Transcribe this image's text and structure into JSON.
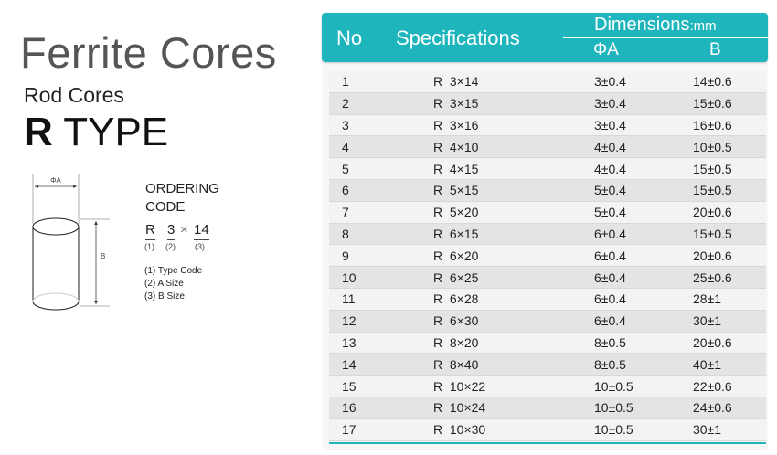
{
  "title": "Ferrite Cores",
  "subtitle": "Rod Cores",
  "type_prefix": "R",
  "type_word": "TYPE",
  "diagram": {
    "a_label": "ΦA",
    "b_label": "B"
  },
  "ordering": {
    "line1": "ORDERING",
    "line2": "CODE",
    "code_r": "R",
    "code_a": "3",
    "code_x": "×",
    "code_b": "14",
    "n1": "(1)",
    "n2": "(2)",
    "n3": "(3)",
    "legend": [
      "(1) Type Code",
      "(2) A Size",
      "(3) B Size"
    ]
  },
  "table": {
    "headers": {
      "no": "No",
      "spec": "Specifications",
      "dim": "Dimensions",
      "unit": ":mm",
      "a": "ΦA",
      "b": "B"
    },
    "accent": "#1fb5bd",
    "rows": [
      [
        "1",
        "R  3×14",
        "3±0.4",
        "14±0.6"
      ],
      [
        "2",
        "R  3×15",
        "3±0.4",
        "15±0.6"
      ],
      [
        "3",
        "R  3×16",
        "3±0.4",
        "16±0.6"
      ],
      [
        "4",
        "R  4×10",
        "4±0.4",
        "10±0.5"
      ],
      [
        "5",
        "R  4×15",
        "4±0.4",
        "15±0.5"
      ],
      [
        "6",
        "R  5×15",
        "5±0.4",
        "15±0.5"
      ],
      [
        "7",
        "R  5×20",
        "5±0.4",
        "20±0.6"
      ],
      [
        "8",
        "R  6×15",
        "6±0.4",
        "15±0.5"
      ],
      [
        "9",
        "R  6×20",
        "6±0.4",
        "20±0.6"
      ],
      [
        "10",
        "R  6×25",
        "6±0.4",
        "25±0.6"
      ],
      [
        "11",
        "R  6×28",
        "6±0.4",
        "28±1"
      ],
      [
        "12",
        "R  6×30",
        "6±0.4",
        "30±1"
      ],
      [
        "13",
        "R  8×20",
        "8±0.5",
        "20±0.6"
      ],
      [
        "14",
        "R  8×40",
        "8±0.5",
        "40±1"
      ],
      [
        "15",
        "R  10×22",
        "10±0.5",
        "22±0.6"
      ],
      [
        "16",
        "R  10×24",
        "10±0.5",
        "24±0.6"
      ],
      [
        "17",
        "R  10×30",
        "10±0.5",
        "30±1"
      ]
    ]
  }
}
